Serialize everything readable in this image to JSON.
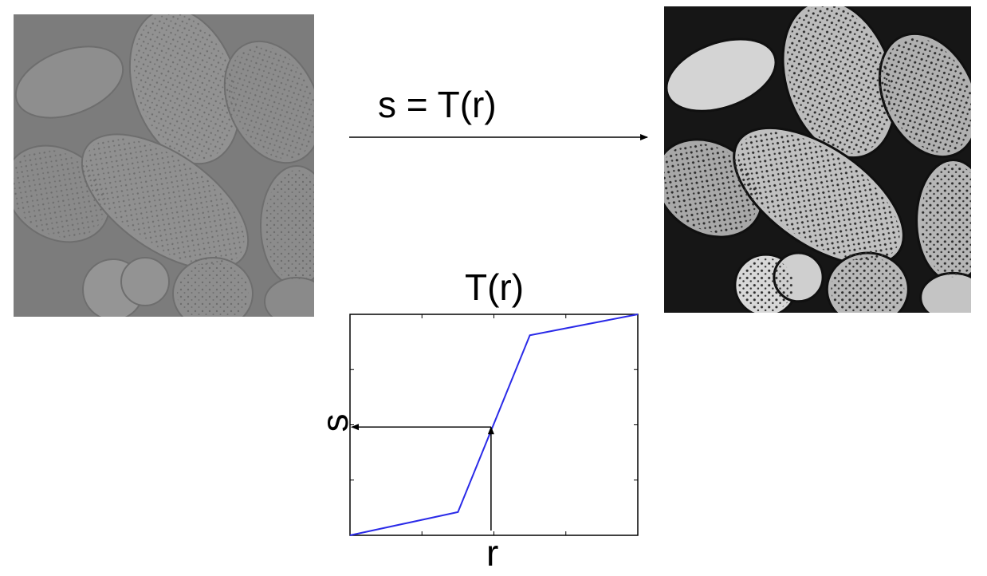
{
  "transform_arrow": {
    "equation": "s = T(r)"
  },
  "chart_data": {
    "type": "line",
    "title": "T(r)",
    "xlabel": "r",
    "ylabel": "s",
    "xlim": [
      0,
      1
    ],
    "ylim": [
      0,
      1
    ],
    "series": [
      {
        "x": [
          0,
          0.375,
          0.625,
          1
        ],
        "y": [
          0,
          0.105,
          0.905,
          1
        ],
        "color": "#2a2ae8"
      }
    ],
    "lookup": {
      "r": 0.49,
      "s": 0.49
    },
    "colors": {
      "curve": "#2a2ae8",
      "axes": "#000000"
    }
  },
  "images": {
    "input": "low-contrast-pollen-image",
    "output": "contrast-stretched-pollen-image"
  }
}
